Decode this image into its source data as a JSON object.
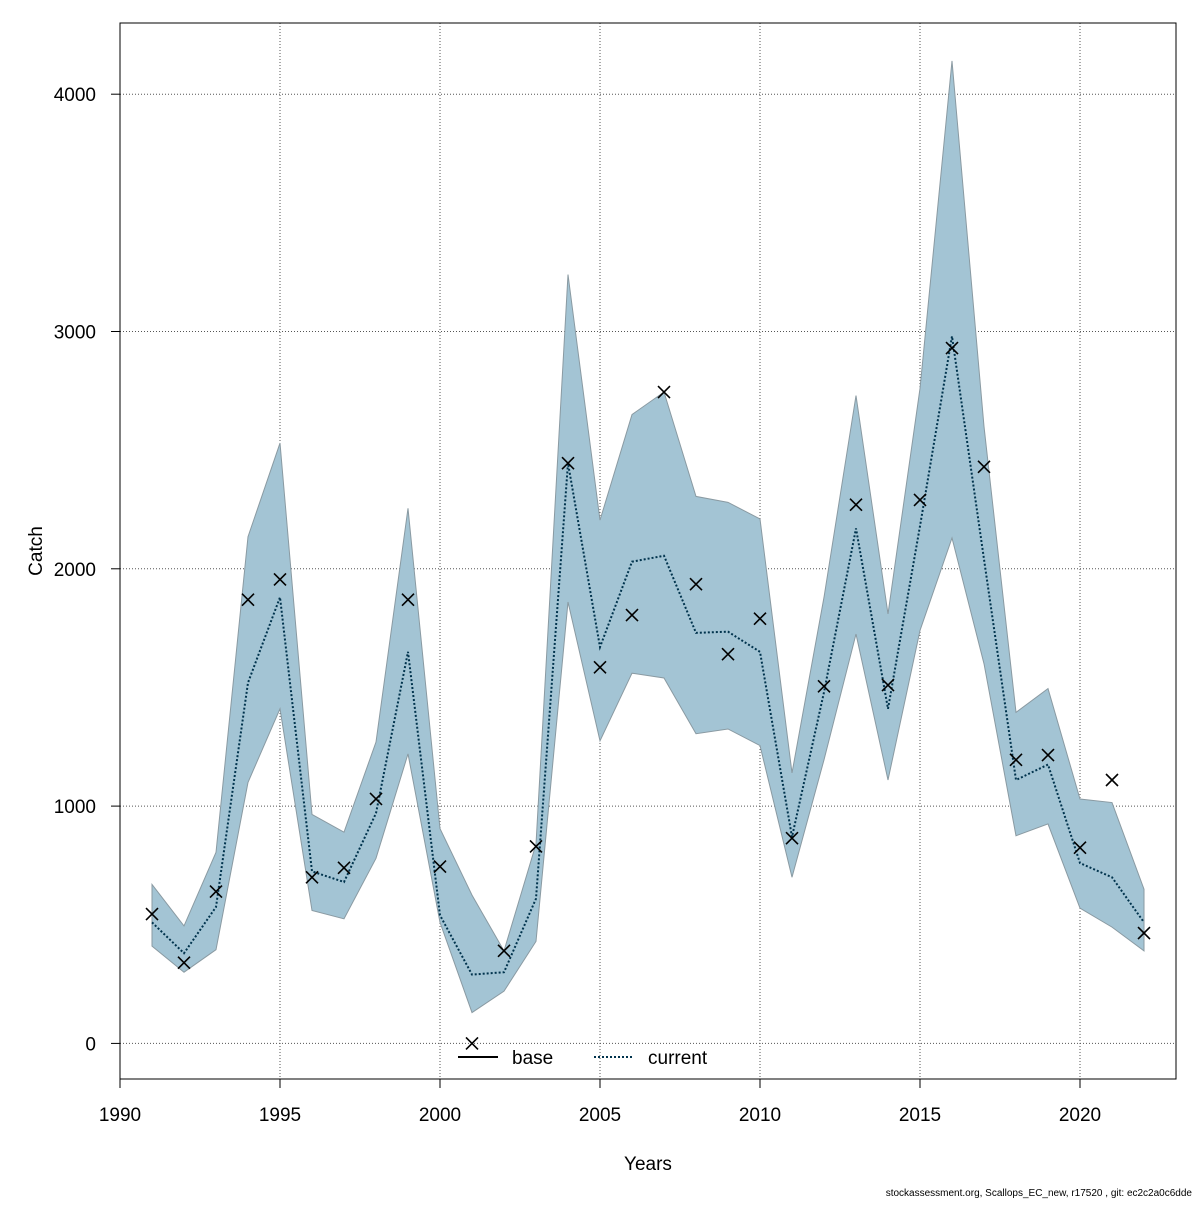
{
  "chart_data": {
    "type": "line",
    "title": "",
    "xlabel": "Years",
    "ylabel": "Catch",
    "xlim": [
      1990,
      2023
    ],
    "ylim": [
      -150,
      4300
    ],
    "x_ticks": [
      1990,
      1995,
      2000,
      2005,
      2010,
      2015,
      2020
    ],
    "y_ticks": [
      0,
      1000,
      2000,
      3000,
      4000
    ],
    "grid": true,
    "legend_position": "bottom-center",
    "colors": {
      "band_fill": "#a3c4d4",
      "band_edge": "#8a9aa2",
      "current_line": "#00334d",
      "base_line": "#000000",
      "observed_marker": "#000000"
    },
    "years": [
      1991,
      1992,
      1993,
      1994,
      1995,
      1996,
      1997,
      1998,
      1999,
      2000,
      2001,
      2002,
      2003,
      2004,
      2005,
      2006,
      2007,
      2008,
      2009,
      2010,
      2011,
      2012,
      2013,
      2014,
      2015,
      2016,
      2017,
      2018,
      2019,
      2020,
      2021,
      2022
    ],
    "observed": [
      545,
      340,
      640,
      1870,
      1955,
      700,
      740,
      1030,
      1870,
      745,
      0,
      390,
      830,
      2445,
      1585,
      1805,
      2745,
      1935,
      1640,
      1790,
      865,
      1505,
      2270,
      1510,
      2290,
      2930,
      2430,
      1195,
      1215,
      825,
      1110,
      465
    ],
    "series": [
      {
        "name": "base",
        "values": []
      },
      {
        "name": "current",
        "values": [
          510,
          380,
          575,
          1520,
          1880,
          725,
          680,
          970,
          1650,
          540,
          290,
          300,
          610,
          2445,
          1670,
          2030,
          2055,
          1730,
          1735,
          1650,
          870,
          1480,
          2170,
          1410,
          2180,
          2980,
          2040,
          1110,
          1175,
          760,
          700,
          510
        ],
        "lower": [
          410,
          300,
          395,
          1100,
          1410,
          560,
          525,
          780,
          1220,
          510,
          130,
          220,
          430,
          1860,
          1275,
          1560,
          1540,
          1305,
          1325,
          1255,
          700,
          1195,
          1725,
          1110,
          1740,
          2130,
          1600,
          875,
          925,
          570,
          490,
          390
        ],
        "upper": [
          670,
          495,
          805,
          2135,
          2530,
          965,
          890,
          1270,
          2255,
          905,
          625,
          390,
          840,
          3240,
          2205,
          2650,
          2745,
          2305,
          2280,
          2210,
          1140,
          1880,
          2730,
          1810,
          2760,
          4140,
          2600,
          1395,
          1495,
          1030,
          1015,
          650
        ]
      }
    ],
    "legend": [
      "base",
      "current"
    ],
    "footer": "stockassessment.org, Scallops_EC_new, r17520 , git: ec2c2a0c6dde"
  }
}
